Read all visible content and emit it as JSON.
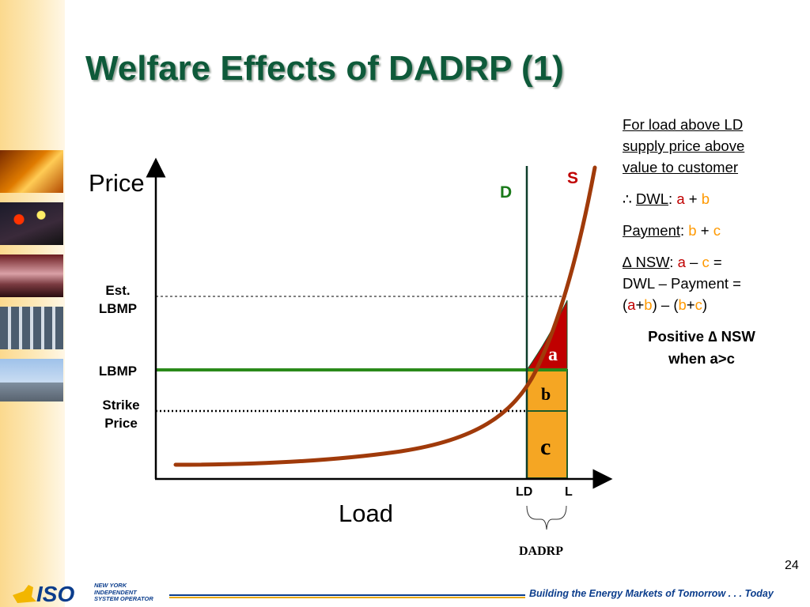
{
  "slide": {
    "title": "Welfare Effects of DADRP (1)",
    "page_number": "24"
  },
  "diagram": {
    "y_axis_label": "Price",
    "x_axis_label": "Load",
    "supply_label": "S",
    "demand_label": "D",
    "price_levels": [
      {
        "line1": "Est.",
        "line2": "LBMP"
      },
      {
        "line1": "LBMP",
        "line2": ""
      },
      {
        "line1": "Strike",
        "line2": "Price"
      }
    ],
    "x_ticks": [
      "LD",
      "L"
    ],
    "regions": {
      "a": "a",
      "b": "b",
      "c": "c"
    },
    "brace_label": "DADRP"
  },
  "panel": {
    "intro": "For load above LD supply price above value to customer",
    "therefore": "∴",
    "dwl_term": "DWL",
    "payment_term": "Payment",
    "delta": "∆",
    "nsw_term": "NSW",
    "line_continued": "DWL – Payment =",
    "conclusion_line1": "Positive ∆ NSW",
    "conclusion_line2": "when a>c",
    "a": "a",
    "b": "b",
    "c": "c",
    "plus": "+",
    "minus": "–",
    "equals": "=",
    "colon": ":"
  },
  "footer": {
    "logo_name": "ISO",
    "org_line1": "NEW YORK",
    "org_line2": "INDEPENDENT",
    "org_line3": "SYSTEM OPERATOR",
    "tagline": "Building the Energy Markets of Tomorrow . . . Today"
  },
  "colors": {
    "title": "#0e5a3a",
    "supply_curve": "#a03a0a",
    "demand_line": "#0e3d2a",
    "lbmp_line": "#2a8a1a",
    "region_a": "#c00000",
    "region_b": "#f5a623",
    "region_c": "#f5a623"
  }
}
